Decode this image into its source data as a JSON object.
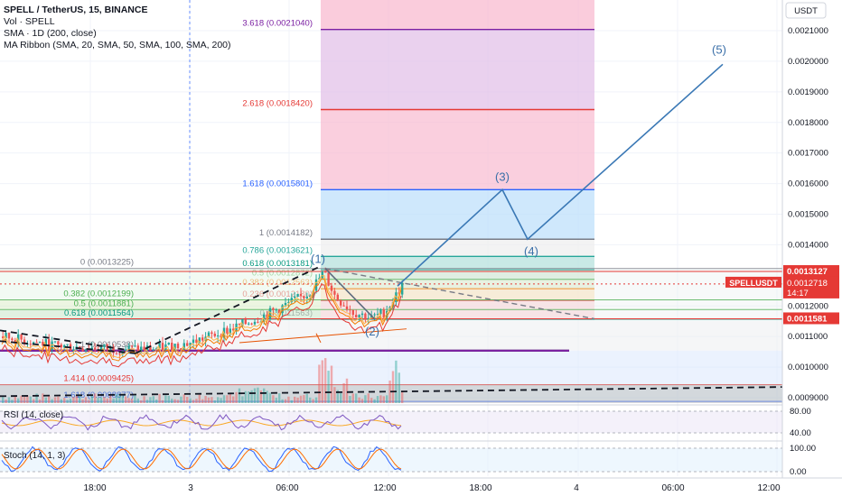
{
  "header": {
    "title": "SPELL / TetherUS, 15, BINANCE",
    "vol": "Vol · SPELL",
    "sma": "SMA · 1D (200, close)",
    "ribbon": "MA Ribbon (SMA, 20, SMA, 50, SMA, 100, SMA, 200)"
  },
  "price_scale": {
    "currency": "USDT",
    "ticks": [
      "0.0021000",
      "0.0020000",
      "0.0019000",
      "0.0018000",
      "0.0017000",
      "0.0016000",
      "0.0015000",
      "0.0014000",
      "0.0012000",
      "0.0011000",
      "0.0010000",
      "0.0009000"
    ],
    "tick_values": [
      0.0021,
      0.002,
      0.0019,
      0.0018,
      0.0017,
      0.0016,
      0.0015,
      0.0014,
      0.0012,
      0.0011,
      0.001,
      0.0009
    ],
    "tags": [
      {
        "label": "0.0013127",
        "value": 0.0013127,
        "color": "#e53935",
        "text_color": "#ffffff"
      },
      {
        "label": "SPELLUSDT",
        "value": 0.0012718,
        "color": "#e53935",
        "text_color": "#ffffff",
        "sub": "0.0012718",
        "timer": "14:17"
      },
      {
        "label": "0.0011581",
        "value": 0.0011581,
        "color": "#e53935",
        "text_color": "#ffffff"
      }
    ]
  },
  "time_axis": {
    "labels": [
      "18:00",
      "3",
      "06:00",
      "12:00",
      "18:00",
      "4",
      "06:00",
      "12:00"
    ]
  },
  "fib_extension": {
    "levels": [
      {
        "ratio": "3.618",
        "price": 0.002104,
        "label": "3.618 (0.0021040)",
        "color": "#7b1fa2",
        "fill": "#e1bee7"
      },
      {
        "ratio": "2.618",
        "price": 0.001842,
        "label": "2.618 (0.0018420)",
        "color": "#e53935",
        "fill": "#f8bbd0"
      },
      {
        "ratio": "1.618",
        "price": 0.0015801,
        "label": "1.618 (0.0015801)",
        "color": "#2962ff",
        "fill": "#bbdefb"
      },
      {
        "ratio": "1",
        "price": 0.0014182,
        "label": "1 (0.0014182)",
        "color": "#787b86",
        "fill": "#eeeeee"
      },
      {
        "ratio": "0.786",
        "price": 0.0013621,
        "label": "0.786 (0.0013621)",
        "color": "#26a69a",
        "fill": "#b2dfdb"
      },
      {
        "ratio": "0.618",
        "price": 0.0013181,
        "label": "0.618 (0.0013181)",
        "color": "#089981",
        "fill": "#c8e6c9"
      },
      {
        "ratio": "0.5",
        "price": 0.0012872,
        "label": "0.5 (0.0012872)",
        "color": "#4caf50",
        "fill": "#dcedc8"
      },
      {
        "ratio": "0.382",
        "price": 0.0012563,
        "label": "0.382 (0.0012563)",
        "color": "#f57c00",
        "fill": "#ffe0b2"
      },
      {
        "ratio": "0.236",
        "price": 0.001218,
        "label": "0.236 (0.0012180)",
        "color": "#e53935",
        "fill": "#ffcdd2"
      },
      {
        "ratio": "0",
        "price": 0.0011563,
        "label": "0 (0.0011563)",
        "color": "#787b86",
        "fill": "#f5f5f5"
      }
    ],
    "top_band_fill": "#f8bbd0"
  },
  "fib_retracement": {
    "levels": [
      {
        "label": "0 (0.0013225)",
        "price": 0.0013225,
        "color": "#787b86"
      },
      {
        "label": "0.382 (0.0012199)",
        "price": 0.0012199,
        "color": "#4caf50"
      },
      {
        "label": "0.5 (0.0011881)",
        "price": 0.0011881,
        "color": "#4caf50"
      },
      {
        "label": "0.618 (0.0011564)",
        "price": 0.0011564,
        "color": "#089981"
      },
      {
        "label": "1 (0.0010538)",
        "price": 0.0010538,
        "color": "#787b86"
      },
      {
        "label": "1.414 (0.0009425)",
        "price": 0.0009425,
        "color": "#e53935"
      },
      {
        "label": "1.618 (0.0008877)",
        "price": 0.0008877,
        "color": "#2962ff"
      }
    ]
  },
  "elliott_wave": {
    "labels": [
      "(1)",
      "(2)",
      "(3)",
      "(4)",
      "(5)"
    ],
    "points_price": [
      0.0013225,
      0.0011563,
      0.0015801,
      0.0014182,
      0.00199
    ]
  },
  "indicators": {
    "rsi": {
      "label": "RSI (14, close)",
      "ticks": [
        "80.00",
        "40.00"
      ],
      "tick_values": [
        80,
        40
      ]
    },
    "stoch": {
      "label": "Stoch (14, 1, 3)",
      "ticks": [
        "100.00",
        "0.00"
      ],
      "tick_values": [
        100,
        0
      ]
    }
  },
  "chart_data": {
    "type": "line",
    "title": "SPELL / TetherUS, 15, BINANCE",
    "xlabel": "",
    "ylabel": "",
    "ylim": [
      0.00087,
      0.00215
    ],
    "series": [
      {
        "name": "SPELLUSDT",
        "x": [
          "18:00",
          "3",
          "06:00",
          "06:30",
          "09:00",
          "12:00",
          "12:45"
        ],
        "values": [
          0.00106,
          0.00106,
          0.00113,
          0.00119,
          0.00132,
          0.00116,
          0.0012718
        ]
      }
    ]
  }
}
